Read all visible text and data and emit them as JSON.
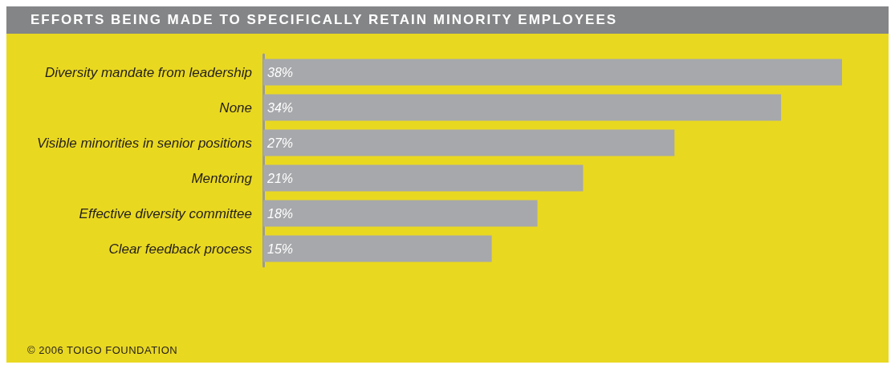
{
  "chart_data": {
    "type": "bar",
    "orientation": "horizontal",
    "title": "EFFORTS BEING MADE TO SPECIFICALLY RETAIN MINORITY EMPLOYEES",
    "categories": [
      "Diversity mandate from leadership",
      "None",
      "Visible minorities in senior positions",
      "Mentoring",
      "Effective diversity committee",
      "Clear feedback process"
    ],
    "values": [
      38,
      34,
      27,
      21,
      18,
      15
    ],
    "value_labels": [
      "38%",
      "34%",
      "27%",
      "21%",
      "18%",
      "15%"
    ],
    "color": "#a7a8ab",
    "annotations": [
      "© 2006 TOIGO FOUNDATION"
    ]
  }
}
